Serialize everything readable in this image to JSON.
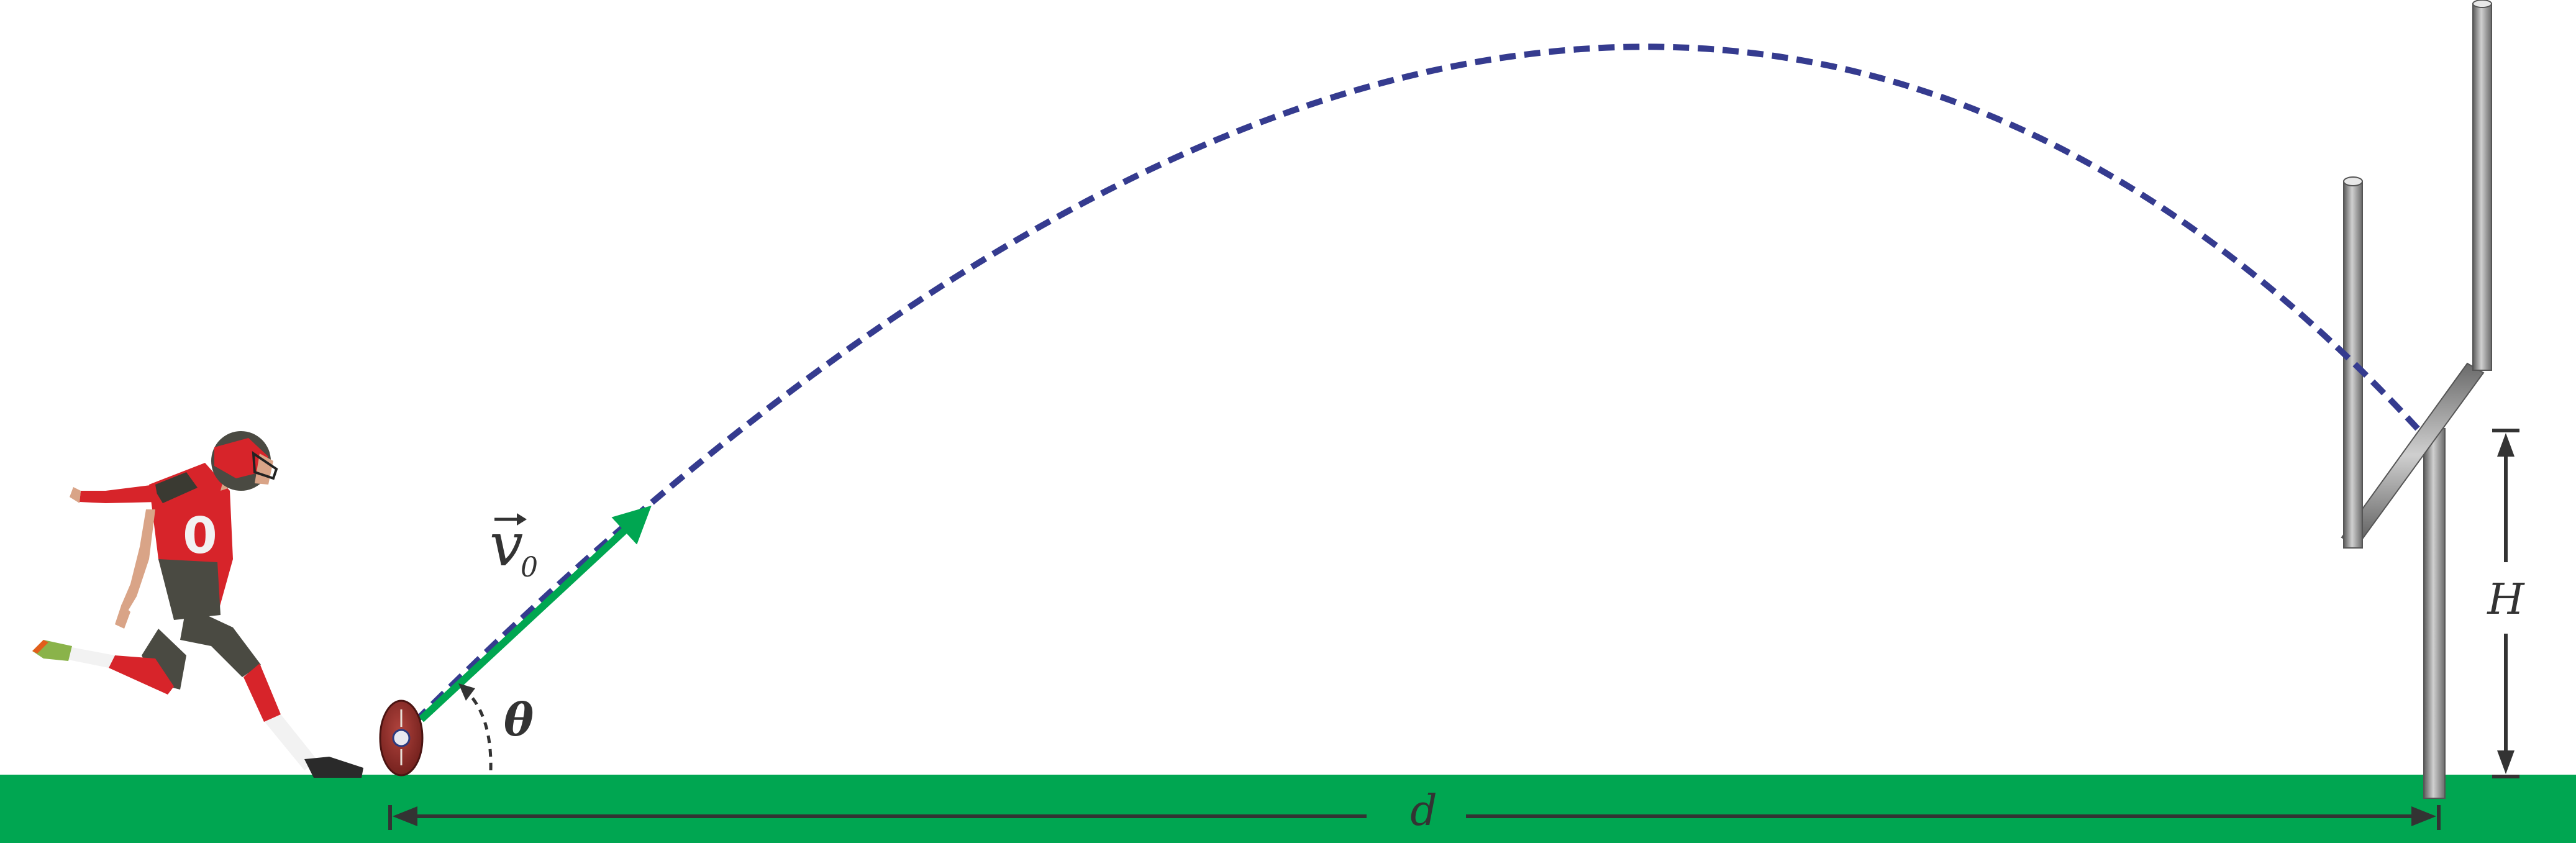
{
  "labels": {
    "velocity_symbol": "v",
    "velocity_subscript": "0",
    "angle": "θ",
    "height": "H",
    "distance": "d"
  },
  "colors": {
    "field": "#00a651",
    "trajectory": "#353b8f",
    "velocity_vector": "#00a651",
    "dimension_lines": "#333333",
    "goalpost_dark": "#5a5a5a",
    "goalpost_light": "#c8c8c8",
    "jersey_red": "#d7242a",
    "jersey_pewter": "#4a4a42",
    "football_brown": "#8c2a26"
  },
  "icons": {
    "kicker": "kicker-figure",
    "ball": "football-icon",
    "goalpost": "goalpost-figure"
  }
}
